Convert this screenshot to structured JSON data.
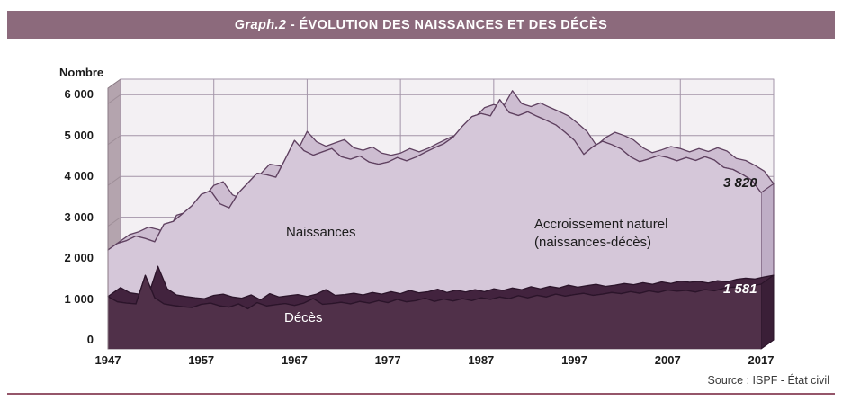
{
  "header": {
    "prefix": "Graph.2",
    "separator": " - ",
    "title": "ÉVOLUTION DES NAISSANCES ET DES DÉCÈS"
  },
  "source": "Source : ISPF - État civil",
  "chart_data": {
    "type": "area",
    "title": "Graph.2 - Évolution des naissances et des décès",
    "ylabel": "Nombre",
    "xlabel": "",
    "x_start_year": 1947,
    "x_end_year": 2017,
    "x_tick_labels": [
      "1947",
      "1957",
      "1967",
      "1977",
      "1987",
      "1997",
      "2007",
      "2017"
    ],
    "y_tick_labels": [
      "0",
      "1 000",
      "2 000",
      "3 000",
      "4 000",
      "5 000",
      "6 000"
    ],
    "y_tick_values": [
      0,
      1000,
      2000,
      3000,
      4000,
      5000,
      6000
    ],
    "ylim": [
      0,
      6350
    ],
    "grid": true,
    "legend_position": "none",
    "style": "3d-area",
    "series": [
      {
        "name": "Naissances",
        "values": [
          2420,
          2580,
          2650,
          2760,
          2700,
          2620,
          3050,
          3120,
          3310,
          3500,
          3780,
          3870,
          3550,
          3450,
          3820,
          4060,
          4300,
          4260,
          4200,
          4640,
          5100,
          4850,
          4740,
          4820,
          4900,
          4700,
          4640,
          4720,
          4570,
          4520,
          4570,
          4680,
          4600,
          4690,
          4810,
          4920,
          5020,
          5180,
          5450,
          5680,
          5760,
          5700,
          6100,
          5780,
          5710,
          5800,
          5690,
          5590,
          5480,
          5300,
          5100,
          4760,
          4950,
          5080,
          5000,
          4890,
          4700,
          4580,
          4650,
          4730,
          4680,
          4600,
          4680,
          4610,
          4700,
          4620,
          4440,
          4390,
          4270,
          4130,
          3820
        ]
      },
      {
        "name": "Décès",
        "values": [
          1280,
          1150,
          1120,
          1100,
          1800,
          1250,
          1100,
          1060,
          1030,
          1010,
          1090,
          1120,
          1050,
          1020,
          1100,
          980,
          1130,
          1050,
          1080,
          1110,
          1060,
          1120,
          1230,
          1090,
          1110,
          1140,
          1100,
          1160,
          1120,
          1180,
          1130,
          1210,
          1150,
          1180,
          1240,
          1160,
          1220,
          1170,
          1230,
          1180,
          1250,
          1210,
          1270,
          1230,
          1300,
          1250,
          1310,
          1270,
          1340,
          1290,
          1330,
          1360,
          1310,
          1340,
          1380,
          1350,
          1400,
          1360,
          1420,
          1380,
          1440,
          1410,
          1430,
          1390,
          1450,
          1420,
          1480,
          1510,
          1490,
          1540,
          1581
        ]
      }
    ],
    "annotations": {
      "naissances_label": "Naissances",
      "deces_label": "Décès",
      "accroissement_line1": "Accroissement naturel",
      "accroissement_line2": "(naissances-décès)",
      "last_naissances": "3 820",
      "last_deces": "1 581"
    },
    "palette": {
      "title_bar_bg": "#8c6a7c",
      "births_fill": "#d5c7d9",
      "births_band": "#cdbdd1",
      "births_edge": "#5f4160",
      "births_side": "#bfaec6",
      "deaths_fill": "#503049",
      "deaths_band": "#42233e",
      "deaths_edge": "#2b142a",
      "deaths_side": "#3a1f37",
      "panel_bg": "#f3f0f3",
      "grid_color": "#a394a8",
      "wall_fill": "#b4a4ae",
      "wall_edge": "#8a7a84",
      "source_rule": "#95566a"
    }
  }
}
